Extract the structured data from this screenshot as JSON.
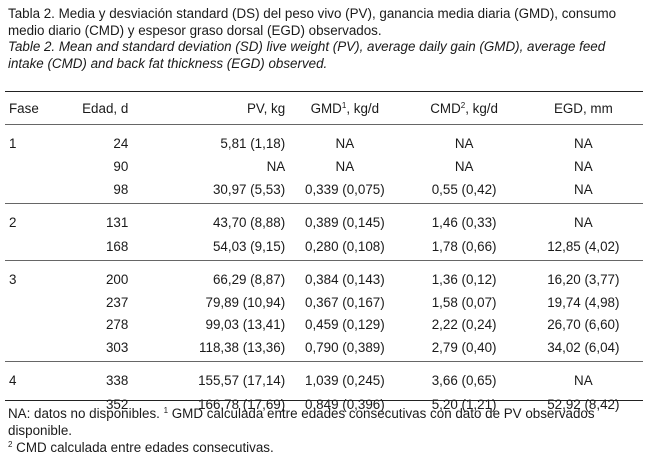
{
  "caption": {
    "es": "Tabla 2. Media y desviación standard (DS) del peso vivo (PV), ganancia media diaria (GMD), consumo medio diario (CMD) y espesor graso dorsal (EGD) observados.",
    "en": "Table 2. Mean and standard deviation (SD) live weight (PV), average daily gain (GMD), average feed intake (CMD) and back fat thickness (EGD) observed."
  },
  "headers": {
    "fase": "Fase",
    "edad": "Edad, d",
    "pv": "PV, kg",
    "gmd": "GMD",
    "gmd_sup": "1",
    "gmd_unit": ", kg/d",
    "cmd": "CMD",
    "cmd_sup": "2",
    "cmd_unit": ", kg/d",
    "egd": "EGD, mm"
  },
  "rows": [
    {
      "fase": "1",
      "edad": "24",
      "pv": "5,81 (1,18)",
      "gmd": "NA",
      "cmd": "NA",
      "egd": "NA"
    },
    {
      "fase": "",
      "edad": "90",
      "pv": "NA",
      "gmd": "NA",
      "cmd": "NA",
      "egd": "NA"
    },
    {
      "fase": "",
      "edad": "98",
      "pv": "30,97 (5,53)",
      "gmd": "0,339 (0,075)",
      "cmd": "0,55 (0,42)",
      "egd": "NA"
    },
    {
      "fase": "2",
      "edad": "131",
      "pv": "43,70 (8,88)",
      "gmd": "0,389 (0,145)",
      "cmd": "1,46 (0,33)",
      "egd": "NA"
    },
    {
      "fase": "",
      "edad": "168",
      "pv": "54,03 (9,15)",
      "gmd": "0,280 (0,108)",
      "cmd": "1,78 (0,66)",
      "egd": "12,85 (4,02)"
    },
    {
      "fase": "3",
      "edad": "200",
      "pv": "66,29 (8,87)",
      "gmd": "0,384 (0,143)",
      "cmd": "1,36 (0,12)",
      "egd": "16,20 (3,77)"
    },
    {
      "fase": "",
      "edad": "237",
      "pv": "79,89 (10,94)",
      "gmd": "0,367 (0,167)",
      "cmd": "1,58 (0,07)",
      "egd": "19,74 (4,98)"
    },
    {
      "fase": "",
      "edad": "278",
      "pv": "99,03 (13,41)",
      "gmd": "0,459 (0,129)",
      "cmd": "2,22 (0,24)",
      "egd": "26,70 (6,60)"
    },
    {
      "fase": "",
      "edad": "303",
      "pv": "118,38 (13,36)",
      "gmd": "0,790 (0,389)",
      "cmd": "2,79 (0,40)",
      "egd": "34,02 (6,04)"
    },
    {
      "fase": "4",
      "edad": "338",
      "pv": "155,57 (17,14)",
      "gmd": "1,039 (0,245)",
      "cmd": "3,66 (0,65)",
      "egd": "NA"
    },
    {
      "fase": "",
      "edad": "352",
      "pv": "166,78 (17,69)",
      "gmd": "0,849 (0,396)",
      "cmd": "5,20 (1,21)",
      "egd": "52,92 (8,42)"
    }
  ],
  "footnotes": {
    "line1_a": "NA: datos no disponibles.",
    "line1_sup": "1",
    "line1_b": " GMD calculada entre edades consecutivas con dato de PV observados disponible.",
    "line2_sup": "2",
    "line2_b": " CMD calculada entre edades consecutivas."
  }
}
